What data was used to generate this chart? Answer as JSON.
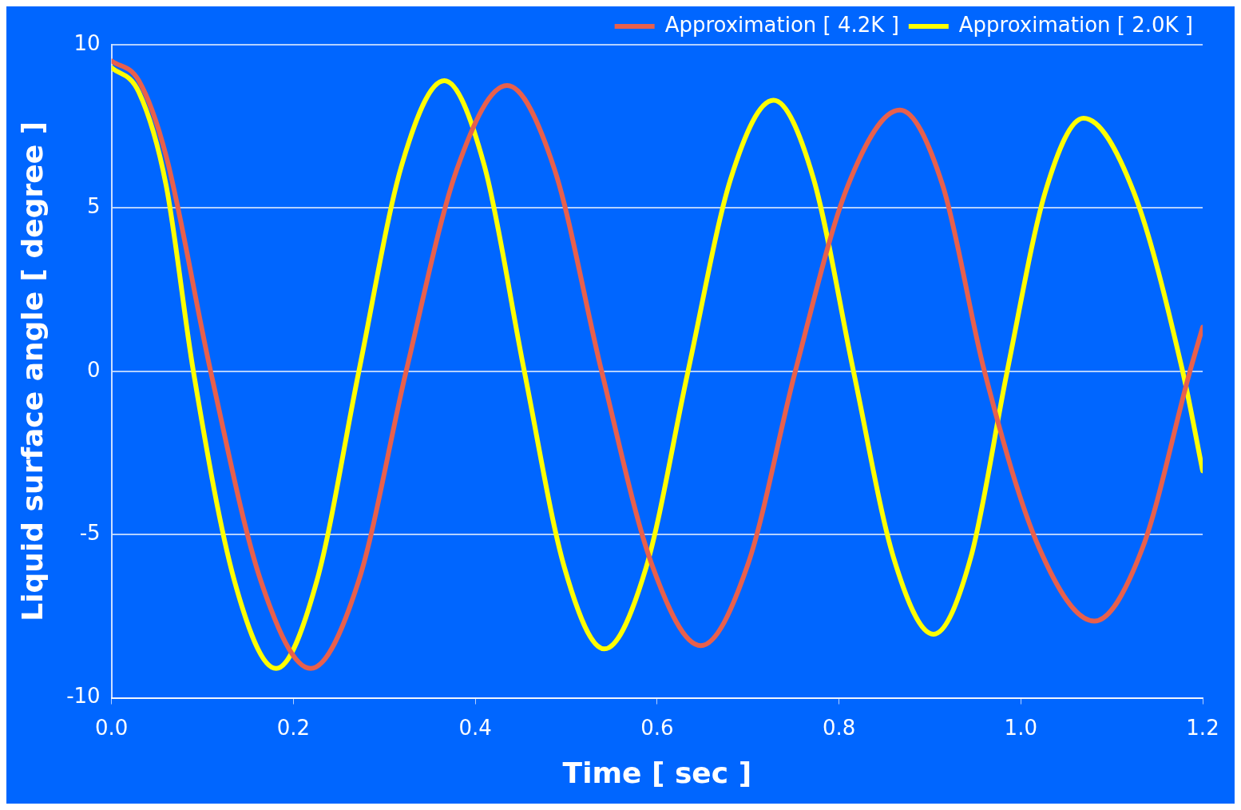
{
  "chart_data": {
    "type": "line",
    "xlabel": "Time [ sec ]",
    "ylabel": "Liquid surface angle [ degree ]",
    "xlim": [
      0,
      1.2
    ],
    "xticks": [
      {
        "value": 0,
        "label": "0.0"
      },
      0.2,
      0.4,
      0.6,
      0.8,
      {
        "value": 1,
        "label": "1.0"
      },
      1.2
    ],
    "ylim": [
      -10,
      10
    ],
    "yticks": [
      -10,
      -5,
      0,
      5,
      10
    ],
    "grid": "y",
    "legend": "top right",
    "marker": "none",
    "line_style": "solid",
    "series": [
      {
        "name": "Approximation [ 4.2K ]",
        "color": "#e8604c",
        "x": [
          0,
          0.03,
          0.06,
          0.109,
          0.164,
          0.219,
          0.272,
          0.324,
          0.38,
          0.435,
          0.487,
          0.539,
          0.594,
          0.648,
          0.7,
          0.752,
          0.81,
          0.867,
          0.914,
          0.96,
          1.02,
          1.081,
          1.134,
          1.186,
          1.2
        ],
        "values": [
          9.5,
          8.9,
          6.6,
          0,
          -6.4,
          -9.1,
          -6.4,
          0,
          6.2,
          8.75,
          6.2,
          0,
          -5.9,
          -8.4,
          -5.9,
          0,
          5.7,
          8.0,
          5.7,
          0,
          -5.4,
          -7.65,
          -5.4,
          0,
          1.35
        ]
      },
      {
        "name": "Approximation [ 2.0K ]",
        "color": "#ffff00",
        "x": [
          0,
          0.03,
          0.06,
          0.09,
          0.135,
          0.181,
          0.226,
          0.272,
          0.319,
          0.366,
          0.41,
          0.454,
          0.498,
          0.542,
          0.588,
          0.634,
          0.681,
          0.728,
          0.772,
          0.816,
          0.86,
          0.904,
          0.945,
          0.985,
          1.027,
          1.069,
          1.124,
          1.178,
          1.2
        ],
        "values": [
          9.3,
          8.55,
          5.7,
          0,
          -6.4,
          -9.1,
          -6.4,
          0,
          6.3,
          8.9,
          6.3,
          0,
          -6.0,
          -8.5,
          -6.0,
          0,
          5.9,
          8.3,
          5.9,
          0,
          -5.7,
          -8.05,
          -5.7,
          0,
          5.5,
          7.75,
          5.5,
          0,
          -3.05
        ]
      }
    ]
  }
}
